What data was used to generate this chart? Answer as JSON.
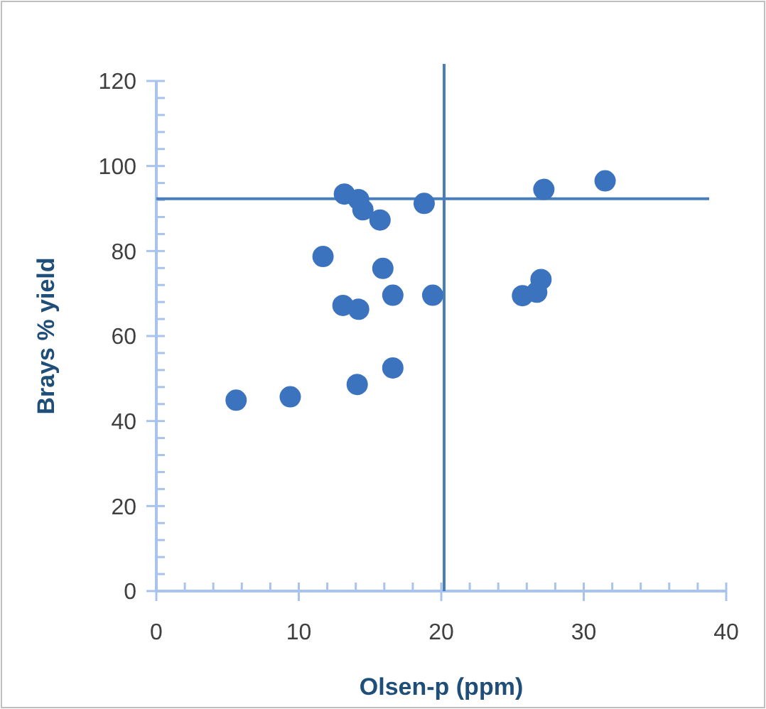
{
  "chart_data": {
    "type": "scatter",
    "xlabel": "Olsen-p (ppm)",
    "ylabel": "Brays % yield",
    "xlim": [
      0,
      40
    ],
    "ylim": [
      0,
      120
    ],
    "xticks": [
      0,
      {
        "value": 2,
        "label": null
      },
      {
        "value": 4,
        "label": null
      },
      {
        "value": 6,
        "label": null
      },
      {
        "value": 8,
        "label": null
      },
      10,
      {
        "value": 12,
        "label": null
      },
      {
        "value": 14,
        "label": null
      },
      {
        "value": 16,
        "label": null
      },
      {
        "value": 18,
        "label": null
      },
      20,
      {
        "value": 22,
        "label": null
      },
      {
        "value": 24,
        "label": null
      },
      {
        "value": 26,
        "label": null
      },
      {
        "value": 28,
        "label": null
      },
      30,
      {
        "value": 32,
        "label": null
      },
      {
        "value": 34,
        "label": null
      },
      {
        "value": 36,
        "label": null
      },
      {
        "value": 38,
        "label": null
      },
      40
    ],
    "yticks": [
      0,
      {
        "value": 4,
        "label": null
      },
      {
        "value": 8,
        "label": null
      },
      {
        "value": 12,
        "label": null
      },
      {
        "value": 16,
        "label": null
      },
      20,
      {
        "value": 24,
        "label": null
      },
      {
        "value": 28,
        "label": null
      },
      {
        "value": 32,
        "label": null
      },
      {
        "value": 36,
        "label": null
      },
      40,
      {
        "value": 44,
        "label": null
      },
      {
        "value": 48,
        "label": null
      },
      {
        "value": 52,
        "label": null
      },
      {
        "value": 56,
        "label": null
      },
      60,
      {
        "value": 64,
        "label": null
      },
      {
        "value": 68,
        "label": null
      },
      {
        "value": 72,
        "label": null
      },
      {
        "value": 76,
        "label": null
      },
      80,
      {
        "value": 84,
        "label": null
      },
      {
        "value": 88,
        "label": null
      },
      {
        "value": 92,
        "label": null
      },
      {
        "value": 96,
        "label": null
      },
      100,
      {
        "value": 104,
        "label": null
      },
      {
        "value": 108,
        "label": null
      },
      {
        "value": 112,
        "label": null
      },
      {
        "value": 116,
        "label": null
      },
      120
    ],
    "marker": "circle",
    "grid": false,
    "series": [
      {
        "color": "#3b73bf",
        "x": [
          13.2,
          14.2,
          14.5,
          15.7,
          18.8,
          27.2,
          31.5,
          11.7,
          15.9,
          27.0,
          26.7,
          25.7,
          13.1,
          14.2,
          16.6,
          19.4,
          5.6,
          9.4,
          14.1,
          16.6
        ],
        "values": [
          93.4,
          92.1,
          89.7,
          87.3,
          91.2,
          94.5,
          96.5,
          78.7,
          75.9,
          73.3,
          70.3,
          69.5,
          67.2,
          66.3,
          69.6,
          69.6,
          44.9,
          45.7,
          48.6,
          52.5
        ]
      }
    ],
    "ref_lines": [
      {
        "axis": "y",
        "value": 92.3,
        "color": "#4a7ebb"
      },
      {
        "axis": "x",
        "value": 20.2,
        "color": "#4a7ebb"
      }
    ]
  }
}
